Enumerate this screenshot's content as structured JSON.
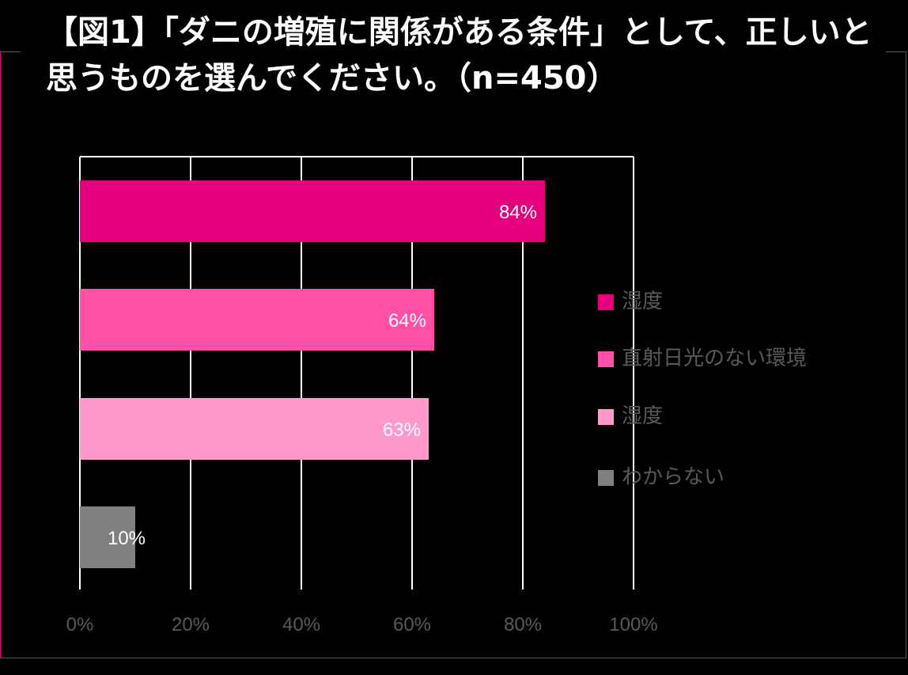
{
  "title": "【図1】「ダニの増殖に関係がある条件」として、正しいと思うものを選んでください。（n=450）",
  "chart_data": {
    "type": "bar",
    "orientation": "horizontal",
    "categories": [
      "湿度",
      "直射日光のない環境",
      "湿度",
      "わからない"
    ],
    "values": [
      84,
      64,
      63,
      10
    ],
    "data_labels": [
      "84%",
      "64%",
      "63%",
      "10%"
    ],
    "colors": [
      "#e6007e",
      "#ff4fa7",
      "#ff99cc",
      "#808080"
    ],
    "xlim": [
      0,
      100
    ],
    "ticks": [
      0,
      20,
      40,
      60,
      80,
      100
    ],
    "tick_labels": [
      "0%",
      "20%",
      "40%",
      "60%",
      "80%",
      "100%"
    ],
    "grid": true,
    "legend_position": "right"
  }
}
